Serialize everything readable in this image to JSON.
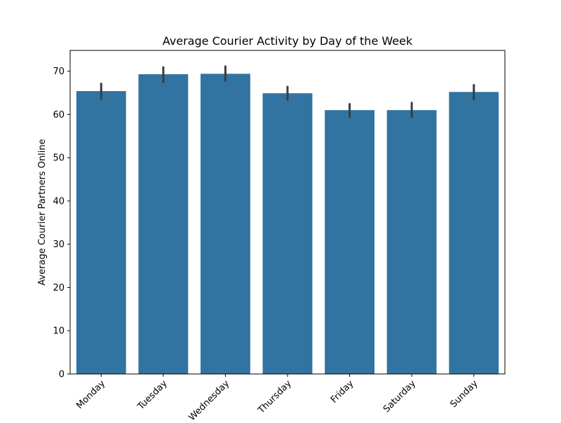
{
  "chart_data": {
    "type": "bar",
    "title": "Average Courier Activity by Day of the Week",
    "xlabel": "",
    "ylabel": "Average Courier Partners Online",
    "categories": [
      "Monday",
      "Tuesday",
      "Wednesday",
      "Thursday",
      "Friday",
      "Saturday",
      "Sunday"
    ],
    "values": [
      65.4,
      69.3,
      69.4,
      64.9,
      61.0,
      61.0,
      65.2
    ],
    "error_low": [
      63.4,
      67.3,
      67.6,
      63.2,
      59.2,
      59.2,
      63.3
    ],
    "error_high": [
      67.3,
      71.1,
      71.3,
      66.6,
      62.6,
      62.9,
      67.0
    ],
    "ylim": [
      0,
      74.8
    ],
    "yticks": [
      0,
      10,
      20,
      30,
      40,
      50,
      60,
      70
    ],
    "grid": false,
    "legend": "none",
    "bar_color": "#3274a1",
    "error_color": "#3c3c3c"
  }
}
